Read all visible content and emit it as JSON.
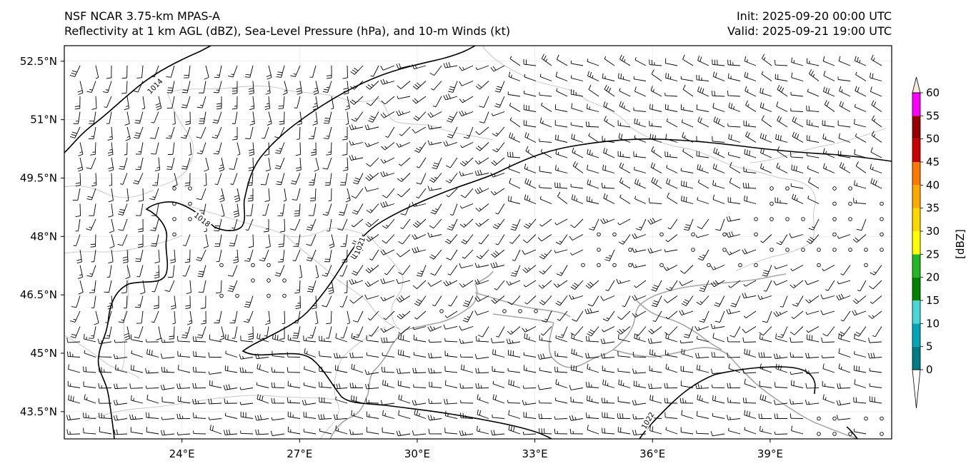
{
  "header": {
    "model": "NSF NCAR 3.75-km MPAS-A",
    "fields": "Reflectivity at 1 km AGL (dBZ), Sea-Level Pressure (hPa), and 10-m Winds (kt)",
    "init": "Init: 2025-09-20 00:00 UTC",
    "valid": "Valid: 2025-09-21 19:00 UTC"
  },
  "map": {
    "lon_range": [
      21,
      42.1
    ],
    "lat_range": [
      42.8,
      52.9
    ],
    "lat_ticks": [
      {
        "value": 52.5,
        "label": "52.5°N"
      },
      {
        "value": 51,
        "label": "51°N"
      },
      {
        "value": 49.5,
        "label": "49.5°N"
      },
      {
        "value": 48,
        "label": "48°N"
      },
      {
        "value": 46.5,
        "label": "46.5°N"
      },
      {
        "value": 45,
        "label": "45°N"
      },
      {
        "value": 43.5,
        "label": "43.5°N"
      }
    ],
    "lon_ticks": [
      {
        "value": 24,
        "label": "24°E"
      },
      {
        "value": 27,
        "label": "27°E"
      },
      {
        "value": 30,
        "label": "30°E"
      },
      {
        "value": 33,
        "label": "33°E"
      },
      {
        "value": 36,
        "label": "36°E"
      },
      {
        "value": 39,
        "label": "39°E"
      }
    ],
    "isobar_labels": [
      "1014",
      "1018",
      "1021",
      "1022"
    ],
    "colors": {
      "isobar": "#000000",
      "coastline": "#a0a0a0",
      "border": "#c0c0c0",
      "barb": "#000000"
    }
  },
  "colorbar": {
    "label": "[dBZ]",
    "levels": [
      "0",
      "5",
      "10",
      "15",
      "20",
      "25",
      "30",
      "35",
      "40",
      "45",
      "50",
      "55",
      "60"
    ],
    "colors": [
      "#007c84",
      "#00a5b7",
      "#4ad6d6",
      "#018201",
      "#23b823",
      "#ffff00",
      "#fed600",
      "#ffa900",
      "#ff7800",
      "#c90000",
      "#960000",
      "#ff00ff",
      "#fce8da"
    ]
  }
}
